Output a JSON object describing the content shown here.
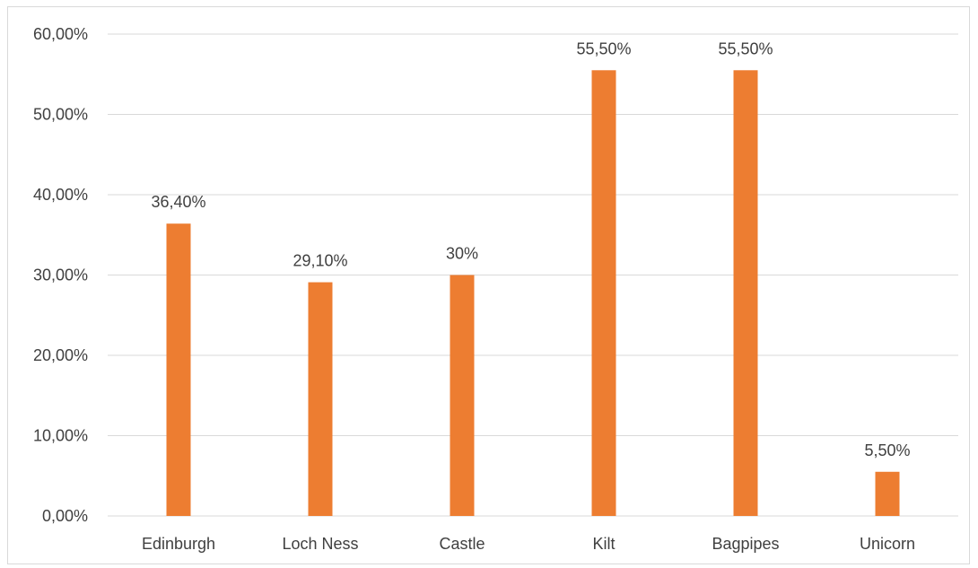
{
  "chart_data": {
    "type": "bar",
    "categories": [
      "Edinburgh",
      "Loch Ness",
      "Castle",
      "Kilt",
      "Bagpipes",
      "Unicorn"
    ],
    "values": [
      36.4,
      29.1,
      30,
      55.5,
      55.5,
      5.5
    ],
    "data_labels": [
      "36,40%",
      "29,10%",
      "30%",
      "55,50%",
      "55,50%",
      "5,50%"
    ],
    "y_ticks": [
      "0,00%",
      "10,00%",
      "20,00%",
      "30,00%",
      "40,00%",
      "50,00%",
      "60,00%"
    ],
    "ylim": [
      0,
      60
    ],
    "grid": true,
    "legend": "none",
    "bar_color": "#ed7d31",
    "grid_color": "#d9d9d9"
  }
}
